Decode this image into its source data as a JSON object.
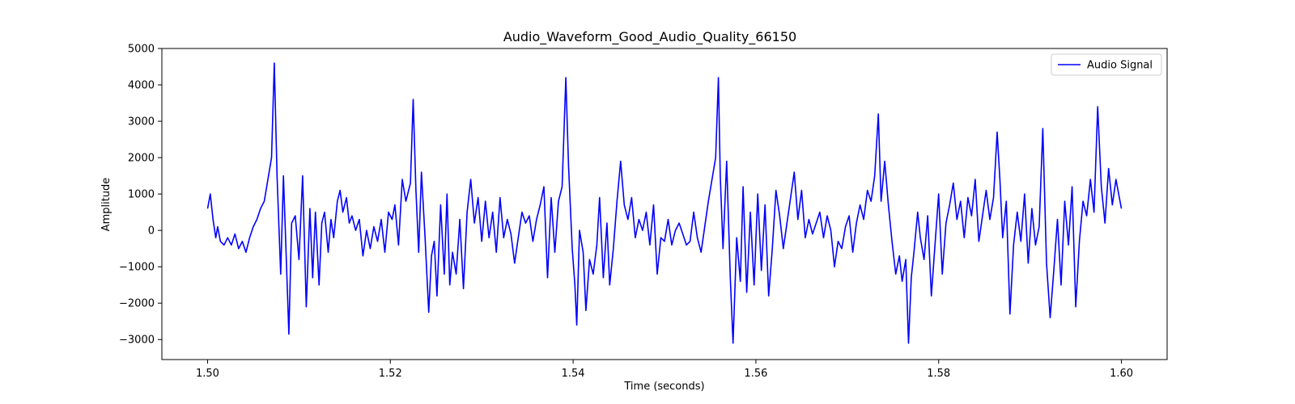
{
  "chart_data": {
    "type": "line",
    "title": "Audio_Waveform_Good_Audio_Quality_66150",
    "xlabel": "Time (seconds)",
    "ylabel": "Amplitude",
    "xlim": [
      1.495,
      1.605
    ],
    "ylim": [
      -3550,
      5000
    ],
    "xticks": [
      1.5,
      1.52,
      1.54,
      1.56,
      1.58,
      1.6
    ],
    "xtick_labels": [
      "1.50",
      "1.52",
      "1.54",
      "1.56",
      "1.58",
      "1.60"
    ],
    "yticks": [
      -3000,
      -2000,
      -1000,
      0,
      1000,
      2000,
      3000,
      4000,
      5000
    ],
    "ytick_labels": [
      "−3000",
      "−2000",
      "−1000",
      "0",
      "1000",
      "2000",
      "3000",
      "4000",
      "5000"
    ],
    "grid": false,
    "legend": {
      "placement": "top-right",
      "entries": [
        "Audio Signal"
      ]
    },
    "series": [
      {
        "name": "Audio Signal",
        "color": "#0000ff",
        "points": [
          [
            1.5,
            600
          ],
          [
            1.5003,
            1000
          ],
          [
            1.5006,
            300
          ],
          [
            1.5009,
            -200
          ],
          [
            1.5011,
            100
          ],
          [
            1.5014,
            -300
          ],
          [
            1.5018,
            -400
          ],
          [
            1.5022,
            -200
          ],
          [
            1.5026,
            -400
          ],
          [
            1.503,
            -100
          ],
          [
            1.5034,
            -500
          ],
          [
            1.5038,
            -300
          ],
          [
            1.5042,
            -600
          ],
          [
            1.5046,
            -200
          ],
          [
            1.505,
            100
          ],
          [
            1.5054,
            300
          ],
          [
            1.5058,
            600
          ],
          [
            1.5062,
            800
          ],
          [
            1.5066,
            1400
          ],
          [
            1.507,
            2000
          ],
          [
            1.5073,
            4600
          ],
          [
            1.5076,
            1500
          ],
          [
            1.508,
            -1200
          ],
          [
            1.5083,
            1500
          ],
          [
            1.5086,
            -700
          ],
          [
            1.5089,
            -2850
          ],
          [
            1.5092,
            200
          ],
          [
            1.5096,
            400
          ],
          [
            1.51,
            -800
          ],
          [
            1.5104,
            1500
          ],
          [
            1.5108,
            -2100
          ],
          [
            1.5112,
            600
          ],
          [
            1.5115,
            -1300
          ],
          [
            1.5118,
            500
          ],
          [
            1.5122,
            -1500
          ],
          [
            1.5125,
            200
          ],
          [
            1.5128,
            500
          ],
          [
            1.5132,
            -600
          ],
          [
            1.5135,
            300
          ],
          [
            1.5138,
            -200
          ],
          [
            1.5142,
            800
          ],
          [
            1.5145,
            1100
          ],
          [
            1.5148,
            500
          ],
          [
            1.5152,
            900
          ],
          [
            1.5155,
            200
          ],
          [
            1.5158,
            400
          ],
          [
            1.5162,
            0
          ],
          [
            1.5166,
            300
          ],
          [
            1.517,
            -700
          ],
          [
            1.5174,
            0
          ],
          [
            1.5178,
            -500
          ],
          [
            1.5182,
            100
          ],
          [
            1.5186,
            -300
          ],
          [
            1.519,
            300
          ],
          [
            1.5194,
            -600
          ],
          [
            1.5198,
            500
          ],
          [
            1.5202,
            300
          ],
          [
            1.5205,
            700
          ],
          [
            1.5209,
            -400
          ],
          [
            1.5213,
            1400
          ],
          [
            1.5217,
            800
          ],
          [
            1.5222,
            1300
          ],
          [
            1.5225,
            3600
          ],
          [
            1.5228,
            1100
          ],
          [
            1.5231,
            -600
          ],
          [
            1.5234,
            1600
          ],
          [
            1.5238,
            -200
          ],
          [
            1.5242,
            -2250
          ],
          [
            1.5245,
            -700
          ],
          [
            1.5248,
            -300
          ],
          [
            1.5251,
            -1800
          ],
          [
            1.5255,
            700
          ],
          [
            1.5259,
            -1200
          ],
          [
            1.5262,
            1000
          ],
          [
            1.5265,
            -1500
          ],
          [
            1.5268,
            -600
          ],
          [
            1.5272,
            -1200
          ],
          [
            1.5276,
            300
          ],
          [
            1.528,
            -1600
          ],
          [
            1.5284,
            500
          ],
          [
            1.5288,
            1400
          ],
          [
            1.5292,
            200
          ],
          [
            1.5296,
            900
          ],
          [
            1.53,
            -300
          ],
          [
            1.5304,
            800
          ],
          [
            1.5308,
            -200
          ],
          [
            1.5312,
            500
          ],
          [
            1.5316,
            -600
          ],
          [
            1.532,
            900
          ],
          [
            1.5324,
            -200
          ],
          [
            1.5328,
            300
          ],
          [
            1.5332,
            -100
          ],
          [
            1.5336,
            -900
          ],
          [
            1.534,
            -200
          ],
          [
            1.5344,
            500
          ],
          [
            1.5348,
            200
          ],
          [
            1.5352,
            400
          ],
          [
            1.5356,
            -300
          ],
          [
            1.536,
            300
          ],
          [
            1.5364,
            700
          ],
          [
            1.5368,
            1200
          ],
          [
            1.5372,
            -1300
          ],
          [
            1.5376,
            900
          ],
          [
            1.538,
            -600
          ],
          [
            1.5384,
            800
          ],
          [
            1.5388,
            1200
          ],
          [
            1.5392,
            4200
          ],
          [
            1.5395,
            1800
          ],
          [
            1.5399,
            -500
          ],
          [
            1.5402,
            -1500
          ],
          [
            1.5404,
            -2600
          ],
          [
            1.5407,
            0
          ],
          [
            1.5411,
            -600
          ],
          [
            1.5414,
            -2200
          ],
          [
            1.5418,
            -800
          ],
          [
            1.5422,
            -1200
          ],
          [
            1.5426,
            -400
          ],
          [
            1.5429,
            900
          ],
          [
            1.5433,
            -1300
          ],
          [
            1.5437,
            200
          ],
          [
            1.544,
            -1500
          ],
          [
            1.5444,
            -500
          ],
          [
            1.5448,
            800
          ],
          [
            1.5452,
            1900
          ],
          [
            1.5456,
            700
          ],
          [
            1.546,
            300
          ],
          [
            1.5464,
            900
          ],
          [
            1.5468,
            -200
          ],
          [
            1.5472,
            300
          ],
          [
            1.5476,
            0
          ],
          [
            1.548,
            500
          ],
          [
            1.5484,
            -400
          ],
          [
            1.5488,
            700
          ],
          [
            1.5492,
            -1200
          ],
          [
            1.5496,
            -200
          ],
          [
            1.55,
            -300
          ],
          [
            1.5504,
            300
          ],
          [
            1.5508,
            -400
          ],
          [
            1.5512,
            0
          ],
          [
            1.5516,
            200
          ],
          [
            1.552,
            -100
          ],
          [
            1.5524,
            -400
          ],
          [
            1.5528,
            -300
          ],
          [
            1.5532,
            500
          ],
          [
            1.5536,
            -200
          ],
          [
            1.554,
            -600
          ],
          [
            1.5544,
            100
          ],
          [
            1.5548,
            800
          ],
          [
            1.5552,
            1400
          ],
          [
            1.5556,
            2000
          ],
          [
            1.5559,
            4200
          ],
          [
            1.5561,
            1500
          ],
          [
            1.5564,
            -500
          ],
          [
            1.5568,
            1900
          ],
          [
            1.5572,
            -1300
          ],
          [
            1.5575,
            -3100
          ],
          [
            1.5579,
            -200
          ],
          [
            1.5583,
            -1400
          ],
          [
            1.5586,
            1200
          ],
          [
            1.559,
            -1700
          ],
          [
            1.5594,
            500
          ],
          [
            1.5598,
            -1500
          ],
          [
            1.5602,
            1000
          ],
          [
            1.5606,
            -1100
          ],
          [
            1.561,
            700
          ],
          [
            1.5614,
            -1800
          ],
          [
            1.5618,
            -500
          ],
          [
            1.5622,
            1100
          ],
          [
            1.5626,
            400
          ],
          [
            1.563,
            -500
          ],
          [
            1.5634,
            200
          ],
          [
            1.5638,
            900
          ],
          [
            1.5642,
            1600
          ],
          [
            1.5646,
            300
          ],
          [
            1.565,
            1100
          ],
          [
            1.5654,
            -200
          ],
          [
            1.5658,
            300
          ],
          [
            1.5662,
            -100
          ],
          [
            1.5666,
            200
          ],
          [
            1.567,
            500
          ],
          [
            1.5674,
            -200
          ],
          [
            1.5678,
            400
          ],
          [
            1.5682,
            0
          ],
          [
            1.5686,
            -1000
          ],
          [
            1.569,
            -300
          ],
          [
            1.5694,
            -500
          ],
          [
            1.5698,
            100
          ],
          [
            1.5702,
            400
          ],
          [
            1.5706,
            -600
          ],
          [
            1.571,
            200
          ],
          [
            1.5714,
            700
          ],
          [
            1.5718,
            300
          ],
          [
            1.5722,
            1100
          ],
          [
            1.5726,
            800
          ],
          [
            1.573,
            1500
          ],
          [
            1.5734,
            3200
          ],
          [
            1.5737,
            800
          ],
          [
            1.5741,
            1900
          ],
          [
            1.5745,
            700
          ],
          [
            1.5749,
            -300
          ],
          [
            1.5753,
            -1200
          ],
          [
            1.5757,
            -700
          ],
          [
            1.576,
            -1400
          ],
          [
            1.5764,
            -800
          ],
          [
            1.5767,
            -3100
          ],
          [
            1.577,
            -1300
          ],
          [
            1.5773,
            -600
          ],
          [
            1.5777,
            500
          ],
          [
            1.578,
            -200
          ],
          [
            1.5784,
            -800
          ],
          [
            1.5788,
            400
          ],
          [
            1.5792,
            -1800
          ],
          [
            1.5796,
            -400
          ],
          [
            1.58,
            1000
          ],
          [
            1.5804,
            -1200
          ],
          [
            1.5808,
            200
          ],
          [
            1.5812,
            700
          ],
          [
            1.5816,
            1300
          ],
          [
            1.582,
            300
          ],
          [
            1.5824,
            800
          ],
          [
            1.5828,
            -200
          ],
          [
            1.5832,
            900
          ],
          [
            1.5836,
            400
          ],
          [
            1.584,
            1400
          ],
          [
            1.5844,
            -300
          ],
          [
            1.5848,
            400
          ],
          [
            1.5852,
            1100
          ],
          [
            1.5856,
            300
          ],
          [
            1.586,
            900
          ],
          [
            1.5864,
            2700
          ],
          [
            1.5867,
            1400
          ],
          [
            1.587,
            -200
          ],
          [
            1.5874,
            800
          ],
          [
            1.5878,
            -2300
          ],
          [
            1.5882,
            -400
          ],
          [
            1.5886,
            500
          ],
          [
            1.589,
            -300
          ],
          [
            1.5894,
            1000
          ],
          [
            1.5898,
            -900
          ],
          [
            1.5902,
            600
          ],
          [
            1.5906,
            -400
          ],
          [
            1.591,
            100
          ],
          [
            1.5914,
            2800
          ],
          [
            1.5918,
            -900
          ],
          [
            1.5922,
            -2400
          ],
          [
            1.5926,
            -1100
          ],
          [
            1.593,
            300
          ],
          [
            1.5934,
            -1500
          ],
          [
            1.5938,
            800
          ],
          [
            1.5942,
            -400
          ],
          [
            1.5946,
            1200
          ],
          [
            1.595,
            -2100
          ],
          [
            1.5954,
            -300
          ],
          [
            1.5958,
            800
          ],
          [
            1.5962,
            400
          ],
          [
            1.5966,
            1400
          ],
          [
            1.597,
            500
          ],
          [
            1.5974,
            3400
          ],
          [
            1.5978,
            1200
          ],
          [
            1.5982,
            200
          ],
          [
            1.5986,
            1700
          ],
          [
            1.599,
            700
          ],
          [
            1.5994,
            1400
          ],
          [
            1.6,
            600
          ]
        ]
      }
    ]
  }
}
